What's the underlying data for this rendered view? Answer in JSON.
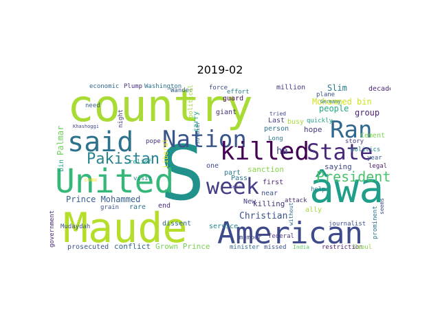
{
  "title": "2019-02",
  "words": [
    {
      "text": "country",
      "color": "#a8db34"
    },
    {
      "text": "S",
      "color": "#21918c"
    },
    {
      "text": "Maude",
      "color": "#b5de2b"
    },
    {
      "text": "American",
      "color": "#3e4a89"
    },
    {
      "text": "âwa",
      "color": "#1f9e89"
    },
    {
      "text": "United",
      "color": "#35b779"
    },
    {
      "text": "said",
      "color": "#2c728e"
    },
    {
      "text": "Nation",
      "color": "#39558c"
    },
    {
      "text": "killed",
      "color": "#440154"
    },
    {
      "text": "State",
      "color": "#482878"
    },
    {
      "text": "Ran",
      "color": "#31688e"
    },
    {
      "text": "week",
      "color": "#433e85"
    },
    {
      "text": "Pakistan",
      "color": "#26828e"
    },
    {
      "text": "President",
      "color": "#4ac16d"
    },
    {
      "text": "Mohammed bin",
      "color": "#d2e21b"
    },
    {
      "text": "Prince Mohammed",
      "color": "#365c8d"
    },
    {
      "text": "Christian",
      "color": "#3b528b"
    },
    {
      "text": "killing",
      "color": "#46327e"
    },
    {
      "text": "Palmar",
      "color": "#6ece58"
    },
    {
      "text": "bin",
      "color": "#20a486"
    },
    {
      "text": "Slim",
      "color": "#2a788e"
    },
    {
      "text": "people",
      "color": "#22a884"
    },
    {
      "text": "group",
      "color": "#481f70"
    },
    {
      "text": "hope",
      "color": "#453781"
    },
    {
      "text": "sanction",
      "color": "#86d549"
    },
    {
      "text": "saying",
      "color": "#3e4989"
    },
    {
      "text": "Grown Prince",
      "color": "#7ad151"
    },
    {
      "text": "conflict",
      "color": "#31688e"
    },
    {
      "text": "prosecuted",
      "color": "#3b528b"
    },
    {
      "text": "Liberal",
      "color": "#fde725"
    },
    {
      "text": "Cement",
      "color": "#7ad151"
    },
    {
      "text": "Wander",
      "color": "#365c8d"
    },
    {
      "text": "political",
      "color": "#a0da39"
    },
    {
      "text": "Washington",
      "color": "#2c728e"
    },
    {
      "text": "Plump",
      "color": "#472d7b"
    },
    {
      "text": "economic",
      "color": "#31688e"
    },
    {
      "text": "force",
      "color": "#3e4a89"
    },
    {
      "text": "effort",
      "color": "#26828e"
    },
    {
      "text": "million",
      "color": "#46327e"
    },
    {
      "text": "decade",
      "color": "#482475"
    },
    {
      "text": "plane",
      "color": "#3b528b"
    },
    {
      "text": "Germany",
      "color": "#2a788e"
    },
    {
      "text": "guard",
      "color": "#450559"
    },
    {
      "text": "giant",
      "color": "#482878"
    },
    {
      "text": "carry",
      "color": "#1fa187"
    },
    {
      "text": "tried",
      "color": "#3f4788"
    },
    {
      "text": "Last",
      "color": "#433e85"
    },
    {
      "text": "person",
      "color": "#2e6f8e"
    },
    {
      "text": "Long",
      "color": "#2a788e"
    },
    {
      "text": "quickly",
      "color": "#20a486"
    },
    {
      "text": "ha",
      "color": "#3e4a89"
    },
    {
      "text": "year",
      "color": "#38598c"
    },
    {
      "text": "politics",
      "color": "#26828e"
    },
    {
      "text": "story",
      "color": "#443983"
    },
    {
      "text": "legal",
      "color": "#481769"
    },
    {
      "text": "help",
      "color": "#277f8e"
    },
    {
      "text": "ally",
      "color": "#a0da39"
    },
    {
      "text": "journalist",
      "color": "#3e4a89"
    },
    {
      "text": "restriction",
      "color": "#48186a"
    },
    {
      "text": "Caoul",
      "color": "#8bd646"
    },
    {
      "text": "India",
      "color": "#5ec962"
    },
    {
      "text": "missed",
      "color": "#3b528b"
    },
    {
      "text": "minister",
      "color": "#31688e"
    },
    {
      "text": "member",
      "color": "#3e4989"
    },
    {
      "text": "federal",
      "color": "#453781"
    },
    {
      "text": "attack",
      "color": "#482878"
    },
    {
      "text": "busy",
      "color": "#a8db34"
    },
    {
      "text": "Pass",
      "color": "#2c728e"
    },
    {
      "text": "first",
      "color": "#481f70"
    },
    {
      "text": "near",
      "color": "#3b528b"
    },
    {
      "text": "New",
      "color": "#433e85"
    },
    {
      "text": "part",
      "color": "#2a788e"
    },
    {
      "text": "one",
      "color": "#3e4a89"
    },
    {
      "text": "dissent",
      "color": "#31688e"
    },
    {
      "text": "service",
      "color": "#25858e"
    },
    {
      "text": "end",
      "color": "#482878"
    },
    {
      "text": "rare",
      "color": "#2c728e"
    },
    {
      "text": "grain",
      "color": "#3b528b"
    },
    {
      "text": "visit",
      "color": "#21918c"
    },
    {
      "text": "relief",
      "color": "#1f9e89"
    },
    {
      "text": "pope",
      "color": "#46337e"
    },
    {
      "text": "need",
      "color": "#38598c"
    },
    {
      "text": "come",
      "color": "#fde725"
    },
    {
      "text": "soldier",
      "color": "#2e6e8e"
    },
    {
      "text": "night",
      "color": "#433e85"
    },
    {
      "text": "Khashoggi",
      "color": "#414487"
    },
    {
      "text": "Mudaydah",
      "color": "#3b528b"
    },
    {
      "text": "government",
      "color": "#482878"
    },
    {
      "text": "Semen",
      "color": "#433e85"
    },
    {
      "text": "without",
      "color": "#31688e"
    },
    {
      "text": "prominent",
      "color": "#2c728e"
    },
    {
      "text": "seems",
      "color": "#3e4a89"
    }
  ]
}
